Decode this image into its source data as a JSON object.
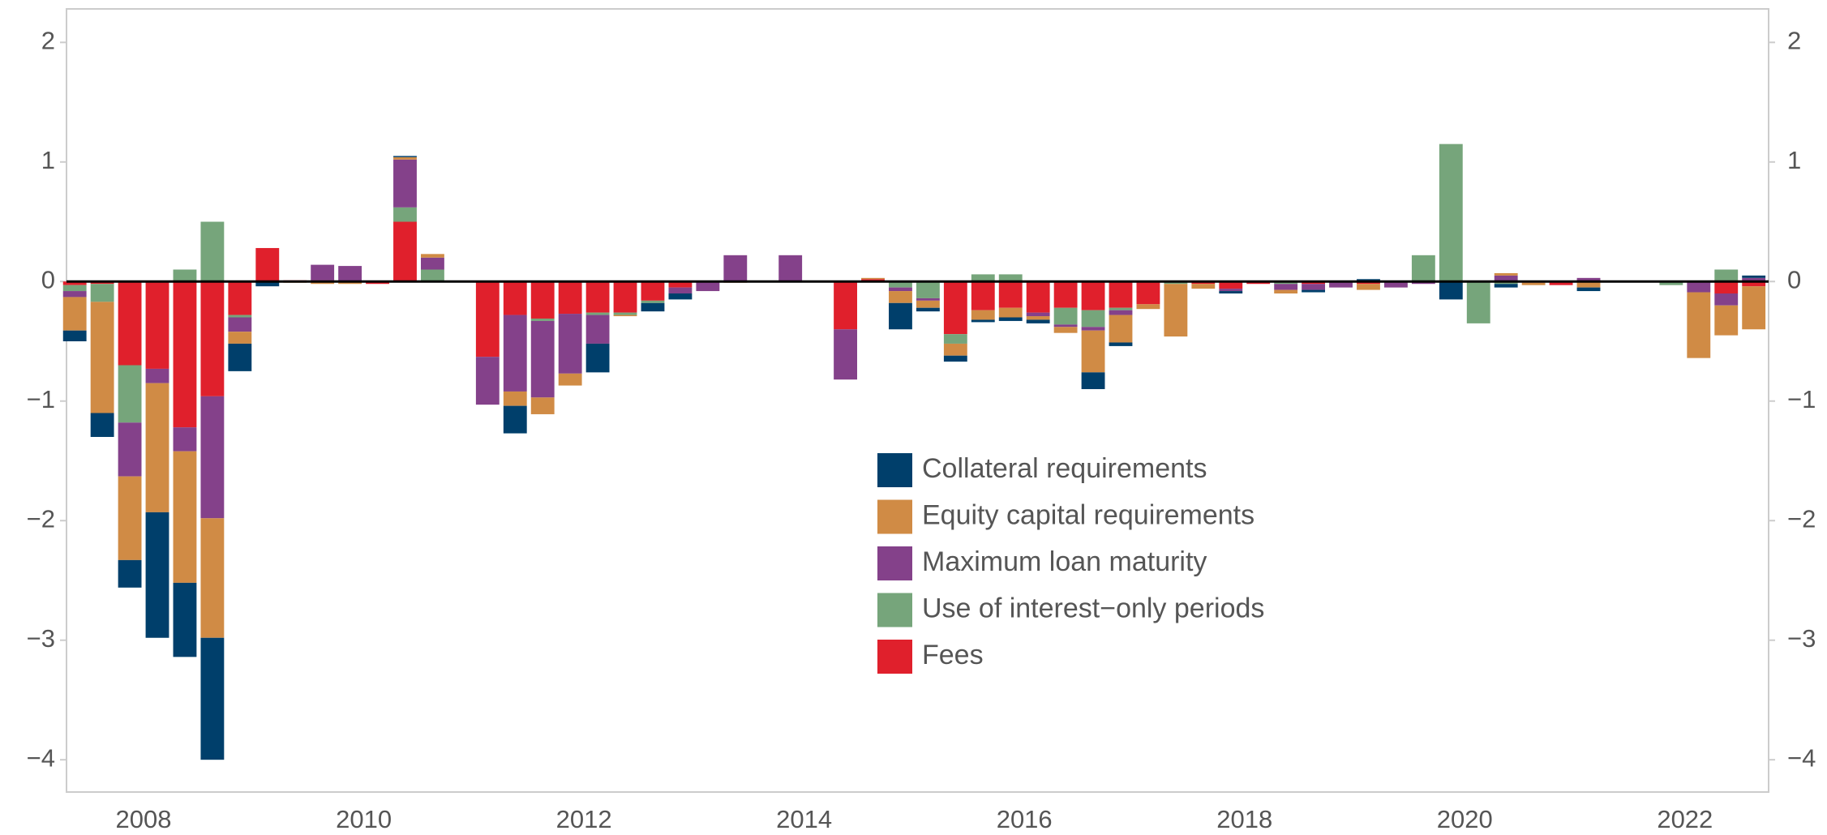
{
  "chart_data": {
    "type": "stacked-bar",
    "x": [
      2007.875,
      2008.125,
      2008.375,
      2008.625,
      2008.875,
      2009.125,
      2009.375,
      2009.625,
      2009.875,
      2010.125,
      2010.375,
      2010.625,
      2010.875,
      2011.125,
      2011.375,
      2011.625,
      2011.875,
      2012.125,
      2012.375,
      2012.625,
      2012.875,
      2013.125,
      2013.375,
      2013.625,
      2013.875,
      2014.125,
      2014.375,
      2014.625,
      2014.875,
      2015.125,
      2015.375,
      2015.625,
      2015.875,
      2016.125,
      2016.375,
      2016.625,
      2016.875,
      2017.125,
      2017.375,
      2017.625,
      2017.875,
      2018.125,
      2018.375,
      2018.625,
      2018.875,
      2019.125,
      2019.375,
      2019.625,
      2019.875,
      2020.125,
      2020.375,
      2020.625,
      2020.875,
      2021.125,
      2021.375,
      2021.625,
      2021.875,
      2022.125,
      2022.375,
      2022.625,
      2022.875,
      2023.125
    ],
    "series": [
      {
        "name": "Collateral requirements",
        "color": "#003f6b",
        "values": [
          -0.09,
          -0.2,
          -0.23,
          -1.05,
          -0.62,
          -1.02,
          -0.23,
          -0.04,
          0,
          0,
          0,
          0,
          0.01,
          0,
          0,
          0,
          -0.23,
          0,
          0,
          -0.24,
          0,
          -0.07,
          -0.05,
          0,
          0,
          0,
          0,
          0,
          0,
          0,
          -0.22,
          -0.03,
          -0.05,
          -0.02,
          -0.03,
          -0.03,
          0,
          -0.14,
          -0.03,
          0,
          0,
          0,
          -0.02,
          0,
          0,
          -0.02,
          0,
          0.02,
          0,
          0,
          -0.15,
          0,
          -0.03,
          0,
          0,
          -0.03,
          0,
          0,
          0,
          0,
          0,
          0.02
        ]
      },
      {
        "name": "Equity capital requirements",
        "color": "#d08b45",
        "values": [
          -0.28,
          -0.93,
          -0.7,
          -1.08,
          -1.1,
          -1.0,
          -0.1,
          0,
          -0.01,
          -0.02,
          -0.02,
          0,
          0.02,
          0.03,
          0,
          0,
          -0.12,
          -0.14,
          -0.1,
          0,
          -0.01,
          0,
          0,
          0,
          -0.01,
          0,
          0,
          0,
          0,
          0.01,
          -0.1,
          -0.06,
          -0.1,
          -0.08,
          -0.08,
          -0.03,
          -0.05,
          -0.35,
          -0.23,
          -0.04,
          -0.44,
          -0.04,
          0,
          0,
          -0.03,
          0,
          0,
          -0.05,
          0,
          0,
          0,
          0,
          0.02,
          -0.02,
          0,
          -0.05,
          0,
          0,
          0,
          -0.55,
          -0.25,
          -0.36
        ]
      },
      {
        "name": "Maximum loan maturity",
        "color": "#84418a",
        "values": [
          -0.05,
          0,
          -0.45,
          -0.12,
          -0.2,
          -1.02,
          -0.12,
          0,
          0,
          0.13,
          0.13,
          0,
          0.4,
          0.1,
          0,
          -0.4,
          -0.64,
          -0.64,
          -0.5,
          -0.24,
          0,
          0,
          -0.05,
          -0.08,
          0.22,
          0,
          0.22,
          0,
          -0.42,
          0,
          -0.03,
          -0.02,
          0,
          0,
          0,
          -0.03,
          -0.02,
          -0.03,
          -0.04,
          0,
          0,
          0,
          -0.02,
          0,
          -0.05,
          -0.05,
          -0.05,
          0,
          -0.05,
          -0.02,
          0,
          0,
          0.05,
          0,
          0,
          0.03,
          0,
          0,
          0,
          -0.09,
          -0.1,
          0.03
        ]
      },
      {
        "name": "Use of interest−only periods",
        "color": "#76a57b",
        "values": [
          -0.05,
          -0.15,
          -0.48,
          0,
          0.1,
          0.5,
          -0.02,
          0,
          0,
          0,
          0,
          0,
          0.12,
          0.1,
          0,
          0,
          0,
          -0.02,
          0,
          -0.02,
          -0.02,
          -0.02,
          0,
          0,
          0,
          0,
          0,
          0,
          0,
          0,
          -0.05,
          -0.14,
          -0.08,
          0.06,
          0.06,
          0,
          -0.14,
          -0.14,
          -0.02,
          0,
          -0.02,
          0,
          0,
          0,
          -0.02,
          0,
          0,
          0,
          0,
          0.22,
          1.15,
          -0.35,
          -0.02,
          0,
          0,
          0,
          0,
          0,
          -0.03,
          0,
          0.1,
          0
        ]
      },
      {
        "name": "Fees",
        "color": "#e0202c",
        "values": [
          -0.03,
          -0.02,
          -0.7,
          -0.73,
          -1.22,
          -0.96,
          -0.28,
          0.28,
          0.01,
          0.01,
          0,
          -0.02,
          0.5,
          0,
          0,
          -0.63,
          -0.28,
          -0.31,
          -0.27,
          -0.26,
          -0.26,
          -0.16,
          -0.05,
          0,
          0,
          0,
          0,
          0,
          -0.4,
          0.02,
          0,
          0,
          -0.44,
          -0.24,
          -0.22,
          -0.26,
          -0.22,
          -0.24,
          -0.22,
          -0.19,
          0,
          -0.02,
          -0.06,
          -0.02,
          0,
          -0.02,
          0,
          -0.02,
          0,
          0,
          0,
          0,
          0,
          -0.01,
          -0.03,
          0,
          0,
          0,
          0,
          0,
          -0.1,
          -0.04
        ]
      }
    ],
    "xlim": [
      2007.8,
      2023.26
    ],
    "xticks": [
      {
        "value": 2008.5,
        "label": "2008"
      },
      {
        "value": 2010.5,
        "label": "2010"
      },
      {
        "value": 2012.5,
        "label": "2012"
      },
      {
        "value": 2014.5,
        "label": "2014"
      },
      {
        "value": 2016.5,
        "label": "2016"
      },
      {
        "value": 2018.5,
        "label": "2018"
      },
      {
        "value": 2020.5,
        "label": "2020"
      },
      {
        "value": 2022.5,
        "label": "2022"
      }
    ],
    "ylim": [
      -4.27,
      2.28
    ],
    "yticks": [
      {
        "value": -4,
        "label": "−4"
      },
      {
        "value": -3,
        "label": "−3"
      },
      {
        "value": -2,
        "label": "−2"
      },
      {
        "value": -1,
        "label": "−1"
      },
      0,
      1,
      2
    ]
  }
}
